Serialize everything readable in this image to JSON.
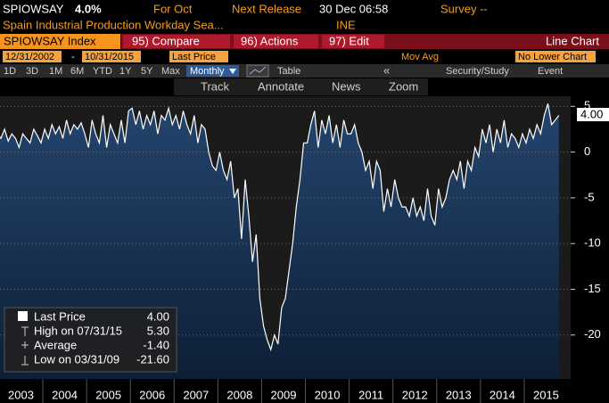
{
  "header": {
    "ticker": "SPIOWSAY",
    "value": "4.0%",
    "period": "For Oct",
    "next_release_label": "Next Release",
    "next_release": "30 Dec 06:58",
    "survey": "Survey --",
    "description": "Spain Industrial Production Workday Sea...",
    "source": "INE"
  },
  "toolbar": {
    "security": "SPIOWSAY Index",
    "buttons": [
      "95) Compare",
      "96) Actions",
      "97) Edit"
    ],
    "view": "Line Chart",
    "start_date": "12/31/2002",
    "end_date": "10/31/2015",
    "field": "Last Price",
    "study": "Mov Avg",
    "lower_chart": "No Lower Chart",
    "ranges": [
      "1D",
      "3D",
      "1M",
      "6M",
      "YTD",
      "1Y",
      "5Y",
      "Max"
    ],
    "frequency": "Monthly",
    "table": "Table",
    "back": "«",
    "security_study": "Security/Study",
    "event": "Event",
    "tools": [
      "Track",
      "Annotate",
      "News",
      "Zoom"
    ]
  },
  "legend": {
    "rows": [
      {
        "label": "Last Price",
        "value": "4.00"
      },
      {
        "label": "High on 07/31/15",
        "value": "5.30"
      },
      {
        "label": "Average",
        "value": "-1.40"
      },
      {
        "label": "Low on 03/31/09",
        "value": "-21.60"
      }
    ]
  },
  "chart_data": {
    "type": "line",
    "xticks": [
      2003,
      2004,
      2005,
      2006,
      2007,
      2008,
      2009,
      2010,
      2011,
      2012,
      2013,
      2014,
      2015
    ],
    "ylim": [
      -24.8,
      6.1
    ],
    "yticks": [
      5,
      0,
      -5,
      -10,
      -15,
      -20
    ],
    "grid": true,
    "series": [
      {
        "name": "Last Price",
        "color": "#ffffff",
        "values": [
          2,
          1.5,
          2.5,
          1.2,
          2,
          1.5,
          0.5,
          2,
          1.5,
          1,
          2.5,
          1.8,
          1,
          2.5,
          1.5,
          3,
          2,
          2.8,
          1.5,
          3.5,
          2,
          3,
          2.5,
          3.2,
          2,
          0.5,
          3.5,
          2,
          1,
          4,
          0.5,
          3,
          2,
          1,
          3.5,
          1,
          4.5,
          4.8,
          3,
          4.5,
          2.5,
          4,
          3,
          4.5,
          2,
          4,
          3.5,
          4.8,
          3,
          4,
          2.5,
          4.5,
          3,
          2,
          4,
          1,
          3,
          2.5,
          0,
          -1.5,
          -2,
          0,
          -2,
          -3,
          -1,
          -5,
          -4,
          -9.5,
          -3,
          -7,
          -12,
          -9,
          -16,
          -19,
          -20.5,
          -21.6,
          -20,
          -21,
          -17,
          -16,
          -13,
          -10,
          -6,
          -3,
          1,
          1,
          3,
          4.5,
          0.5,
          3.5,
          2,
          4,
          1,
          3,
          0.5,
          3.5,
          2,
          2,
          3,
          1,
          0,
          -2,
          -1,
          -4,
          -1,
          -2,
          -6.5,
          -4,
          -6,
          -3,
          -5,
          -6,
          -6,
          -7,
          -5,
          -7,
          -6,
          -7.5,
          -4,
          -7,
          -8,
          -4,
          -6,
          -5,
          -3,
          -2,
          -3,
          -1,
          -4,
          -1,
          -2,
          0.5,
          -0.5,
          2.5,
          1,
          3,
          0,
          2.5,
          1,
          3.5,
          0.5,
          2,
          1.5,
          0.5,
          2,
          1,
          2.5,
          1.5,
          3,
          2,
          4,
          5.3,
          3,
          3.5,
          4
        ]
      }
    ]
  }
}
